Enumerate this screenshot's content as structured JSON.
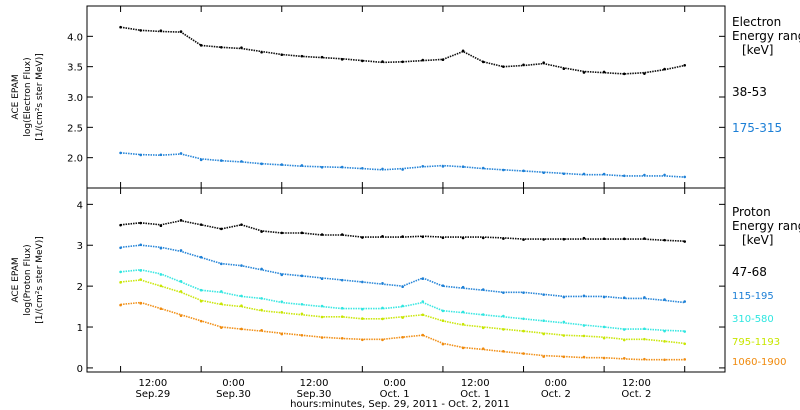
{
  "chart_data": [
    {
      "type": "scatter",
      "panel": "electron",
      "ylabel_lines": [
        "ACE EPAM",
        "log(Electron Flux)",
        "[1/(cm²s ster MeV)]"
      ],
      "ylim": [
        1.5,
        4.5
      ],
      "yticks": [
        2.0,
        2.5,
        3.0,
        3.5,
        4.0
      ],
      "ytick_labels": [
        "2.0",
        "2.5",
        "3.0",
        "3.5",
        "4.0"
      ],
      "legend_title_lines": [
        "Electron",
        "Energy ranges",
        "[keV]"
      ],
      "series": [
        {
          "name": "38-53",
          "color": "#000000",
          "x": [
            0,
            3,
            6,
            9,
            12,
            15,
            18,
            21,
            24,
            27,
            30,
            33,
            36,
            39,
            42,
            45,
            48,
            51,
            54,
            57,
            60,
            63,
            66,
            69,
            72,
            75,
            78,
            81,
            84
          ],
          "y": [
            4.15,
            4.1,
            4.08,
            4.07,
            3.85,
            3.82,
            3.8,
            3.75,
            3.7,
            3.67,
            3.65,
            3.63,
            3.6,
            3.57,
            3.58,
            3.6,
            3.62,
            3.75,
            3.58,
            3.5,
            3.52,
            3.55,
            3.48,
            3.42,
            3.4,
            3.38,
            3.4,
            3.45,
            3.52
          ]
        },
        {
          "name": "175-315",
          "color": "#1c7fd6",
          "x": [
            0,
            3,
            6,
            9,
            12,
            15,
            18,
            21,
            24,
            27,
            30,
            33,
            36,
            39,
            42,
            45,
            48,
            51,
            54,
            57,
            60,
            63,
            66,
            69,
            72,
            75,
            78,
            81,
            84
          ],
          "y": [
            2.08,
            2.05,
            2.04,
            2.06,
            1.98,
            1.95,
            1.93,
            1.9,
            1.88,
            1.86,
            1.85,
            1.84,
            1.82,
            1.8,
            1.82,
            1.85,
            1.87,
            1.85,
            1.82,
            1.8,
            1.78,
            1.76,
            1.74,
            1.72,
            1.72,
            1.7,
            1.7,
            1.7,
            1.68
          ]
        }
      ]
    },
    {
      "type": "scatter",
      "panel": "proton",
      "ylabel_lines": [
        "ACE EPAM",
        "log(Proton Flux)",
        "[1/(cm²s ster MeV)]"
      ],
      "ylim": [
        -0.1,
        4.4
      ],
      "yticks": [
        0,
        1,
        2,
        3,
        4
      ],
      "ytick_labels": [
        "0",
        "1",
        "2",
        "3",
        "4"
      ],
      "legend_title_lines": [
        "Proton",
        "Energy ranges",
        "[keV]"
      ],
      "series": [
        {
          "name": "47-68",
          "color": "#000000",
          "x": [
            0,
            3,
            6,
            9,
            12,
            15,
            18,
            21,
            24,
            27,
            30,
            33,
            36,
            39,
            42,
            45,
            48,
            51,
            54,
            57,
            60,
            63,
            66,
            69,
            72,
            75,
            78,
            81,
            84
          ],
          "y": [
            3.5,
            3.55,
            3.5,
            3.6,
            3.5,
            3.4,
            3.5,
            3.35,
            3.3,
            3.3,
            3.25,
            3.25,
            3.2,
            3.2,
            3.2,
            3.22,
            3.2,
            3.2,
            3.2,
            3.18,
            3.15,
            3.15,
            3.15,
            3.15,
            3.15,
            3.15,
            3.15,
            3.12,
            3.1
          ]
        },
        {
          "name": "115-195",
          "color": "#1c7fd6",
          "x": [
            0,
            3,
            6,
            9,
            12,
            15,
            18,
            21,
            24,
            27,
            30,
            33,
            36,
            39,
            42,
            45,
            48,
            51,
            54,
            57,
            60,
            63,
            66,
            69,
            72,
            75,
            78,
            81,
            84
          ],
          "y": [
            2.95,
            3.0,
            2.95,
            2.85,
            2.7,
            2.55,
            2.5,
            2.4,
            2.3,
            2.25,
            2.2,
            2.15,
            2.1,
            2.05,
            2.0,
            2.2,
            2.0,
            1.95,
            1.9,
            1.85,
            1.85,
            1.8,
            1.75,
            1.75,
            1.75,
            1.7,
            1.7,
            1.65,
            1.6
          ]
        },
        {
          "name": "310-580",
          "color": "#2ee6e0",
          "x": [
            0,
            3,
            6,
            9,
            12,
            15,
            18,
            21,
            24,
            27,
            30,
            33,
            36,
            39,
            42,
            45,
            48,
            51,
            54,
            57,
            60,
            63,
            66,
            69,
            72,
            75,
            78,
            81,
            84
          ],
          "y": [
            2.35,
            2.4,
            2.3,
            2.1,
            1.9,
            1.85,
            1.75,
            1.7,
            1.6,
            1.55,
            1.5,
            1.45,
            1.45,
            1.45,
            1.5,
            1.6,
            1.4,
            1.35,
            1.3,
            1.25,
            1.2,
            1.15,
            1.1,
            1.05,
            1.0,
            0.95,
            0.95,
            0.92,
            0.9
          ]
        },
        {
          "name": "795-1193",
          "color": "#c8e600",
          "x": [
            0,
            3,
            6,
            9,
            12,
            15,
            18,
            21,
            24,
            27,
            30,
            33,
            36,
            39,
            42,
            45,
            48,
            51,
            54,
            57,
            60,
            63,
            66,
            69,
            72,
            75,
            78,
            81,
            84
          ],
          "y": [
            2.1,
            2.15,
            2.0,
            1.85,
            1.65,
            1.55,
            1.5,
            1.4,
            1.35,
            1.3,
            1.25,
            1.25,
            1.2,
            1.2,
            1.25,
            1.3,
            1.15,
            1.05,
            1.0,
            0.95,
            0.9,
            0.85,
            0.8,
            0.78,
            0.75,
            0.7,
            0.7,
            0.65,
            0.6
          ]
        },
        {
          "name": "1060-1900",
          "color": "#f08a0c",
          "x": [
            0,
            3,
            6,
            9,
            12,
            15,
            18,
            21,
            24,
            27,
            30,
            33,
            36,
            39,
            42,
            45,
            48,
            51,
            54,
            57,
            60,
            63,
            66,
            69,
            72,
            75,
            78,
            81,
            84
          ],
          "y": [
            1.55,
            1.6,
            1.45,
            1.3,
            1.15,
            1.0,
            0.95,
            0.9,
            0.85,
            0.8,
            0.75,
            0.72,
            0.7,
            0.7,
            0.75,
            0.8,
            0.6,
            0.5,
            0.45,
            0.4,
            0.35,
            0.3,
            0.28,
            0.25,
            0.25,
            0.22,
            0.2,
            0.2,
            0.2
          ]
        }
      ]
    }
  ],
  "x_axis": {
    "xlim": [
      -5,
      90
    ],
    "ticks": [
      0,
      12,
      24,
      36,
      48,
      60,
      72,
      84
    ],
    "tick_time_labels": [
      "12:00",
      "0:00",
      "12:00",
      "0:00",
      "12:00",
      "0:00",
      "12:00"
    ],
    "tick_date_labels": [
      "Sep.29",
      "Sep.30",
      "Sep.30",
      "Oct. 1",
      "Oct. 1",
      "Oct. 2",
      "Oct. 2"
    ],
    "label": "hours:minutes, Sep. 29, 2011 - Oct. 2, 2011"
  }
}
